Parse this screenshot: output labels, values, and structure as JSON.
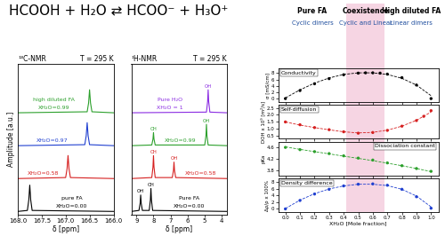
{
  "figure_title": "HCOOH + H₂O ⇄ HCOO⁻ + H₃O⁺",
  "header": {
    "shaded": [
      0.42,
      0.68
    ],
    "regions": [
      {
        "label": "Pure FA",
        "sublabel": "Cyclic dimers"
      },
      {
        "label": "Coexistence",
        "sublabel": "Cyclic and Linear"
      },
      {
        "label": "High diluted FA",
        "sublabel": "Linear dimers"
      }
    ]
  },
  "chart_data": [
    {
      "type": "line",
      "title": "¹³C-NMR",
      "subtitle": "T = 295 K",
      "xlabel": "δ [ppm]",
      "ylabel": "Amplitude [a.u.]",
      "xlim": [
        168.0,
        166.0
      ],
      "xticks": [
        168.0,
        167.5,
        167.0,
        166.5,
        166.0
      ],
      "ylim": [
        0,
        4.6
      ],
      "tick_labels": "x",
      "series": [
        {
          "name": "XH₂O=0.00",
          "note": "pure FA",
          "color": "#000000",
          "x": [
            168.0,
            167.8,
            167.77,
            167.75,
            167.73,
            167.7,
            166.0
          ],
          "values": [
            0.1,
            0.13,
            0.45,
            0.9,
            0.45,
            0.13,
            0.1
          ]
        },
        {
          "name": "XH₂O=0.58",
          "color": "#d62020",
          "x": [
            168.0,
            167.0,
            166.97,
            166.95,
            166.93,
            166.9,
            166.0
          ],
          "values": [
            1.1,
            1.13,
            1.4,
            1.8,
            1.4,
            1.13,
            1.1
          ]
        },
        {
          "name": "XH₂O=0.97",
          "color": "#1f3fd0",
          "x": [
            168.0,
            166.6,
            166.57,
            166.55,
            166.53,
            166.5,
            166.0
          ],
          "values": [
            2.1,
            2.13,
            2.4,
            2.8,
            2.4,
            2.13,
            2.1
          ]
        },
        {
          "name": "XH₂O=0.99",
          "note": "high diluted FA",
          "color": "#2ca02c",
          "x": [
            168.0,
            166.55,
            166.52,
            166.5,
            166.48,
            166.45,
            166.0
          ],
          "values": [
            3.1,
            3.13,
            3.4,
            3.8,
            3.4,
            3.13,
            3.1
          ]
        }
      ]
    },
    {
      "type": "line",
      "title": "¹H-NMR",
      "subtitle": "T = 295 K",
      "xlabel": "δ [ppm]",
      "xlim": [
        9.3,
        3.7
      ],
      "xticks": [
        9,
        8,
        7,
        6,
        5,
        4
      ],
      "ylim": [
        0,
        4.6
      ],
      "tick_labels": "x",
      "series": [
        {
          "name": "XH₂O=0.00",
          "note": "Pure FA",
          "color": "#000000",
          "peak_labels": [
            "OH",
            "CH"
          ],
          "x": [
            9.3,
            8.85,
            8.78,
            8.75,
            8.72,
            8.65,
            8.25,
            8.18,
            8.15,
            8.12,
            8.05,
            3.7
          ],
          "values": [
            0.1,
            0.13,
            0.35,
            0.6,
            0.35,
            0.13,
            0.13,
            0.45,
            0.8,
            0.45,
            0.13,
            0.1
          ]
        },
        {
          "name": "XH₂O=0.58",
          "color": "#d62020",
          "peak_labels": [
            "CH",
            "OH"
          ],
          "x": [
            9.3,
            8.1,
            8.03,
            8.0,
            7.97,
            7.9,
            6.9,
            6.83,
            6.8,
            6.77,
            6.7,
            3.7
          ],
          "values": [
            1.1,
            1.13,
            1.45,
            1.8,
            1.45,
            1.13,
            1.13,
            1.35,
            1.6,
            1.35,
            1.13,
            1.1
          ]
        },
        {
          "name": "XH₂O=0.99",
          "color": "#2ca02c",
          "peak_labels": [
            "CH",
            "OH"
          ],
          "x": [
            9.3,
            8.1,
            8.03,
            8.0,
            7.97,
            7.9,
            5.0,
            4.93,
            4.9,
            4.87,
            4.8,
            3.7
          ],
          "values": [
            2.1,
            2.12,
            2.3,
            2.5,
            2.3,
            2.12,
            2.12,
            2.4,
            2.75,
            2.4,
            2.12,
            2.1
          ]
        },
        {
          "name": "XH₂O = 1",
          "note": "Pure H₂O",
          "color": "#8a2be2",
          "peak_labels": [
            "OH"
          ],
          "x": [
            9.3,
            4.9,
            4.83,
            4.8,
            4.77,
            4.7,
            3.7
          ],
          "values": [
            3.1,
            3.12,
            3.45,
            3.8,
            3.45,
            3.12,
            3.1
          ]
        }
      ]
    },
    {
      "type": "scatter",
      "title": "Conductivity",
      "ylabel": "σ [mS/cm]",
      "xlim": [
        -0.05,
        1.05
      ],
      "xticks": [
        0.0,
        0.1,
        0.2,
        0.3,
        0.4,
        0.5,
        0.6,
        0.7,
        0.8,
        0.9,
        1.0
      ],
      "ylim": [
        -1,
        9.5
      ],
      "yticks": [
        0,
        2,
        4,
        6,
        8
      ],
      "tick_labels": "y",
      "series": [
        {
          "type": "scatter",
          "marker": "circle",
          "color": "#000000",
          "x": [
            0.0,
            0.1,
            0.2,
            0.3,
            0.4,
            0.5,
            0.55,
            0.6,
            0.65,
            0.7,
            0.8,
            0.9,
            1.0
          ],
          "values": [
            0.1,
            2.6,
            4.7,
            6.3,
            7.5,
            8.0,
            8.1,
            8.1,
            8.0,
            7.7,
            6.6,
            4.3,
            0.1
          ]
        },
        {
          "type": "line",
          "line_style": "dashed",
          "color": "#000000",
          "x": [
            0.0,
            0.1,
            0.2,
            0.3,
            0.4,
            0.5,
            0.6,
            0.7,
            0.8,
            0.9,
            1.0
          ],
          "values": [
            0.3,
            2.8,
            4.9,
            6.5,
            7.6,
            8.1,
            8.1,
            7.6,
            6.4,
            4.3,
            1.0
          ]
        }
      ]
    },
    {
      "type": "scatter",
      "title": "Self-diffusion",
      "ylabel": "DOH x 10⁹ [m²/s]",
      "xlim": [
        -0.05,
        1.05
      ],
      "xticks": [
        0.0,
        0.1,
        0.2,
        0.3,
        0.4,
        0.5,
        0.6,
        0.7,
        0.8,
        0.9,
        1.0
      ],
      "ylim": [
        0.3,
        2.7
      ],
      "yticks": [
        0.5,
        1.0,
        1.5,
        2.0,
        2.5
      ],
      "tick_labels": "y",
      "series": [
        {
          "type": "scatter",
          "marker": "circle",
          "color": "#d62020",
          "x": [
            0.0,
            0.1,
            0.2,
            0.3,
            0.4,
            0.5,
            0.6,
            0.7,
            0.8,
            0.9,
            0.95,
            1.0
          ],
          "values": [
            1.5,
            1.3,
            1.1,
            0.95,
            0.8,
            0.7,
            0.75,
            0.9,
            1.2,
            1.6,
            1.9,
            2.3
          ]
        },
        {
          "type": "line",
          "line_style": "dashed",
          "color": "#d62020",
          "x": [
            0.0,
            0.1,
            0.2,
            0.3,
            0.4,
            0.5,
            0.6,
            0.7,
            0.8,
            0.9,
            1.0
          ],
          "values": [
            1.5,
            1.28,
            1.1,
            0.94,
            0.8,
            0.72,
            0.76,
            0.92,
            1.2,
            1.62,
            2.2
          ]
        }
      ]
    },
    {
      "type": "scatter",
      "title": "Dissociation constant",
      "ylabel": "pKa",
      "xlim": [
        -0.05,
        1.05
      ],
      "xticks": [
        0.0,
        0.1,
        0.2,
        0.3,
        0.4,
        0.5,
        0.6,
        0.7,
        0.8,
        0.9,
        1.0
      ],
      "ylim": [
        3.6,
        4.8
      ],
      "yticks": [
        3.8,
        4.2,
        4.6
      ],
      "tick_labels": "y",
      "series": [
        {
          "type": "scatter",
          "marker": "circle",
          "color": "#2ca02c",
          "x": [
            0.0,
            0.1,
            0.2,
            0.3,
            0.4,
            0.5,
            0.6,
            0.7,
            0.8,
            0.9,
            1.0
          ],
          "values": [
            4.6,
            4.52,
            4.45,
            4.38,
            4.3,
            4.22,
            4.15,
            4.05,
            3.95,
            3.85,
            3.75
          ]
        },
        {
          "type": "line",
          "line_style": "dashed",
          "color": "#2ca02c",
          "x": [
            0.0,
            0.1,
            0.2,
            0.3,
            0.4,
            0.5,
            0.6,
            0.7,
            0.8,
            0.9,
            1.0
          ],
          "values": [
            4.62,
            4.53,
            4.45,
            4.37,
            4.29,
            4.21,
            4.13,
            4.04,
            3.95,
            3.85,
            3.74
          ]
        }
      ]
    },
    {
      "type": "scatter",
      "title": "Density difference",
      "ylabel": "Δρ/ρ x 100%",
      "xlabel": "XH₂O [Mole fraction]",
      "xlim": [
        -0.05,
        1.05
      ],
      "xticks": [
        0.0,
        0.1,
        0.2,
        0.3,
        0.4,
        0.5,
        0.6,
        0.7,
        0.8,
        0.9,
        1.0
      ],
      "ylim": [
        -1,
        9
      ],
      "yticks": [
        0,
        2,
        4,
        6,
        8
      ],
      "tick_labels": true,
      "series": [
        {
          "type": "scatter",
          "marker": "circle",
          "color": "#1f3fd0",
          "x": [
            0.0,
            0.1,
            0.2,
            0.3,
            0.4,
            0.5,
            0.6,
            0.7,
            0.8,
            0.9,
            1.0
          ],
          "values": [
            0.0,
            2.5,
            4.4,
            5.8,
            6.8,
            7.3,
            7.4,
            7.0,
            5.8,
            3.6,
            0.2
          ]
        },
        {
          "type": "line",
          "line_style": "dashed",
          "color": "#1f3fd0",
          "x": [
            0.0,
            0.1,
            0.2,
            0.3,
            0.4,
            0.5,
            0.6,
            0.7,
            0.8,
            0.9,
            1.0
          ],
          "values": [
            0.1,
            2.6,
            4.5,
            5.9,
            6.8,
            7.3,
            7.3,
            6.9,
            5.8,
            3.8,
            0.6
          ]
        }
      ]
    }
  ]
}
